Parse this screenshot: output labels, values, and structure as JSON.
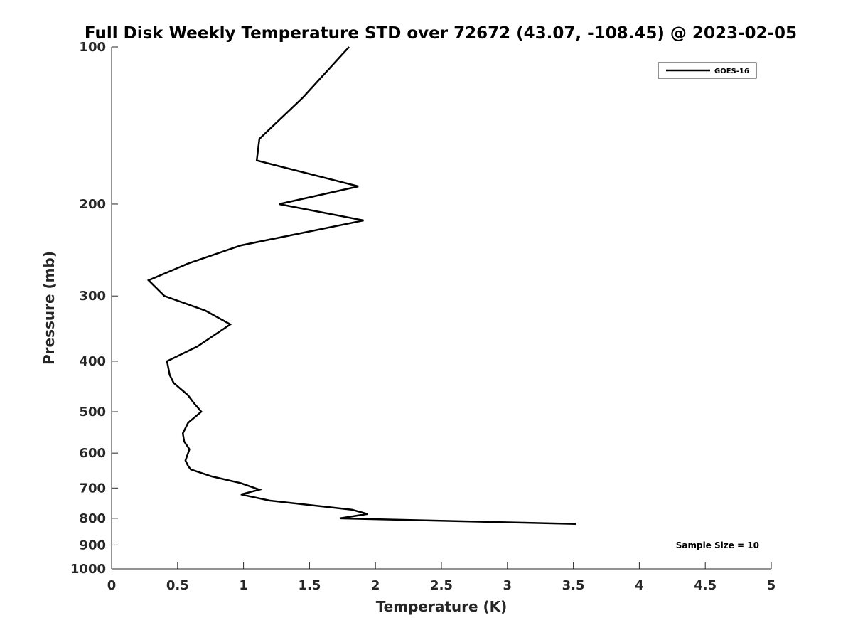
{
  "chart_data": {
    "type": "line",
    "title": "Full Disk Weekly Temperature STD over 72672 (43.07, -108.45) @ 2023-02-05",
    "xlabel": "Temperature (K)",
    "ylabel": "Pressure (mb)",
    "xlim": [
      0,
      5
    ],
    "ylim": [
      1000,
      100
    ],
    "y_scale": "log",
    "y_reversed": true,
    "grid": false,
    "legend_position": "top-right",
    "x_ticks": [
      "0",
      "0.5",
      "1",
      "1.5",
      "2",
      "2.5",
      "3",
      "3.5",
      "4",
      "4.5",
      "5"
    ],
    "y_ticks": [
      "100",
      "200",
      "300",
      "400",
      "500",
      "600",
      "700",
      "800",
      "900",
      "1000"
    ],
    "annotation": "Sample Size = 10",
    "series": [
      {
        "name": "GOES-16",
        "color": "#000000",
        "points": [
          {
            "x": 1.8,
            "y": 100
          },
          {
            "x": 1.45,
            "y": 125
          },
          {
            "x": 1.12,
            "y": 150
          },
          {
            "x": 1.1,
            "y": 165
          },
          {
            "x": 1.87,
            "y": 185
          },
          {
            "x": 1.27,
            "y": 200
          },
          {
            "x": 1.91,
            "y": 215
          },
          {
            "x": 0.98,
            "y": 240
          },
          {
            "x": 0.58,
            "y": 260
          },
          {
            "x": 0.28,
            "y": 280
          },
          {
            "x": 0.4,
            "y": 300
          },
          {
            "x": 0.71,
            "y": 320
          },
          {
            "x": 0.9,
            "y": 340
          },
          {
            "x": 0.65,
            "y": 375
          },
          {
            "x": 0.42,
            "y": 400
          },
          {
            "x": 0.44,
            "y": 425
          },
          {
            "x": 0.47,
            "y": 440
          },
          {
            "x": 0.58,
            "y": 465
          },
          {
            "x": 0.62,
            "y": 480
          },
          {
            "x": 0.68,
            "y": 500
          },
          {
            "x": 0.58,
            "y": 525
          },
          {
            "x": 0.54,
            "y": 550
          },
          {
            "x": 0.55,
            "y": 570
          },
          {
            "x": 0.59,
            "y": 590
          },
          {
            "x": 0.56,
            "y": 620
          },
          {
            "x": 0.58,
            "y": 635
          },
          {
            "x": 0.6,
            "y": 645
          },
          {
            "x": 0.76,
            "y": 665
          },
          {
            "x": 0.98,
            "y": 685
          },
          {
            "x": 1.12,
            "y": 705
          },
          {
            "x": 0.98,
            "y": 720
          },
          {
            "x": 1.2,
            "y": 740
          },
          {
            "x": 1.82,
            "y": 770
          },
          {
            "x": 1.94,
            "y": 785
          },
          {
            "x": 1.73,
            "y": 800
          },
          {
            "x": 3.52,
            "y": 820
          }
        ]
      }
    ]
  }
}
